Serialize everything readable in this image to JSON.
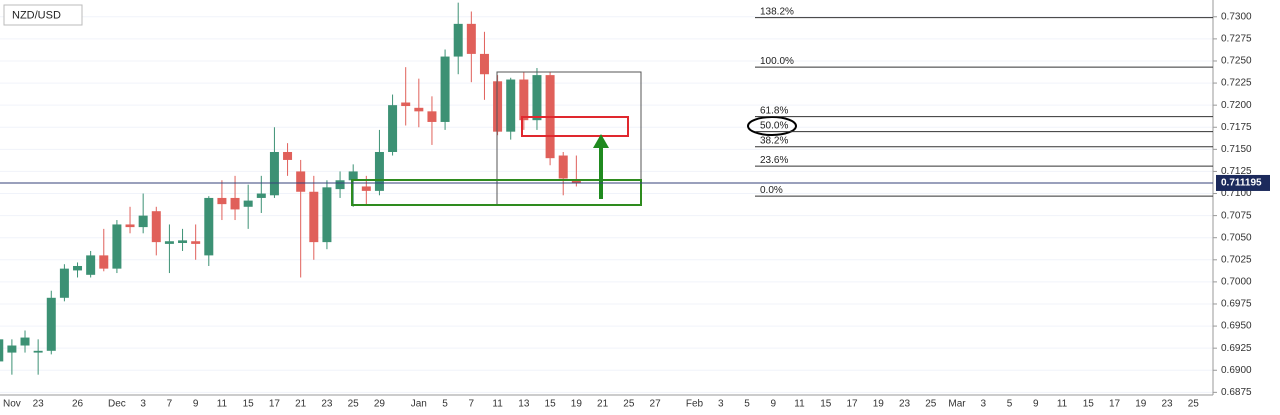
{
  "chart_data": {
    "type": "candlestick",
    "symbol": "NZD/USD",
    "categories": [
      null,
      "Nov",
      null,
      "23",
      null,
      null,
      "26",
      null,
      null,
      "Dec",
      null,
      "3",
      null,
      "7",
      null,
      "9",
      null,
      "11",
      null,
      "15",
      null,
      "17",
      null,
      "21",
      null,
      "23",
      null,
      "25",
      null,
      "29",
      null,
      null,
      "Jan",
      null,
      "5",
      null,
      "7",
      null,
      "11",
      null,
      "13",
      null,
      "15",
      null,
      "19",
      null,
      "21",
      null,
      "25",
      null,
      "27",
      null,
      null,
      "Feb",
      null,
      "3",
      null,
      "5",
      null,
      "9",
      null,
      "11",
      null,
      "15",
      null,
      "17",
      null,
      "19",
      null,
      "23",
      null,
      "25",
      null,
      "Mar",
      null,
      "3",
      null,
      "5",
      null,
      "9",
      null,
      "11",
      null,
      "15",
      null,
      "17",
      null,
      "19",
      null,
      "23",
      null,
      "25",
      null
    ],
    "open": [
      0.691,
      0.692,
      0.6928,
      0.692,
      0.6922,
      0.6982,
      0.7013,
      0.7008,
      0.703,
      0.7015,
      0.7065,
      0.7062,
      0.708,
      0.7043,
      0.7044,
      0.7046,
      0.703,
      0.7095,
      0.7095,
      0.7085,
      0.7095,
      0.7098,
      0.7147,
      0.7125,
      0.7102,
      0.7045,
      0.7105,
      0.7115,
      0.7108,
      0.7103,
      0.7147,
      0.7203,
      0.7197,
      0.7193,
      0.7181,
      0.7255,
      0.7292,
      0.7258,
      0.7227,
      0.717,
      0.7229,
      0.7183,
      0.7234,
      0.7143,
      0.7115,
      null,
      null,
      null,
      null,
      null,
      null,
      null,
      null,
      null,
      null,
      null,
      null,
      null,
      null,
      null,
      null,
      null,
      null,
      null,
      null,
      null,
      null,
      null,
      null,
      null,
      null,
      null,
      null,
      null,
      null,
      null,
      null,
      null,
      null,
      null,
      null,
      null,
      null,
      null,
      null,
      null,
      null,
      null,
      null,
      null,
      null,
      null,
      null
    ],
    "high": [
      0.6945,
      0.6935,
      0.6945,
      0.6935,
      0.699,
      0.702,
      0.7022,
      0.7035,
      0.706,
      0.707,
      0.7085,
      0.71,
      0.7085,
      0.7065,
      0.706,
      0.7065,
      0.7097,
      0.7115,
      0.712,
      0.711,
      0.712,
      0.7175,
      0.7157,
      0.7138,
      0.712,
      0.7115,
      0.7125,
      0.7133,
      0.712,
      0.7172,
      0.7212,
      0.7243,
      0.723,
      0.721,
      0.7263,
      0.7316,
      0.7306,
      0.7283,
      0.7234,
      0.7231,
      0.7238,
      0.7242,
      0.7238,
      0.7147,
      0.7143,
      null,
      null,
      null,
      null,
      null,
      null,
      null,
      null,
      null,
      null,
      null,
      null,
      null,
      null,
      null,
      null,
      null,
      null,
      null,
      null,
      null,
      null,
      null,
      null,
      null,
      null,
      null,
      null,
      null,
      null,
      null,
      null,
      null,
      null,
      null,
      null,
      null,
      null,
      null,
      null,
      null,
      null,
      null,
      null,
      null,
      null,
      null,
      null
    ],
    "low": [
      0.688,
      0.6895,
      0.692,
      0.6895,
      0.6918,
      0.6978,
      0.7005,
      0.7005,
      0.7012,
      0.701,
      0.7055,
      0.7055,
      0.703,
      0.701,
      0.7035,
      0.7025,
      0.7018,
      0.707,
      0.707,
      0.706,
      0.7078,
      0.7095,
      0.712,
      0.7005,
      0.7025,
      0.7037,
      0.7095,
      0.7085,
      0.7087,
      0.7098,
      0.7143,
      0.7177,
      0.7175,
      0.7155,
      0.7172,
      0.7235,
      0.7226,
      0.7206,
      0.7166,
      0.7161,
      0.7172,
      0.7172,
      0.7132,
      0.7098,
      0.7108,
      null,
      null,
      null,
      null,
      null,
      null,
      null,
      null,
      null,
      null,
      null,
      null,
      null,
      null,
      null,
      null,
      null,
      null,
      null,
      null,
      null,
      null,
      null,
      null,
      null,
      null,
      null,
      null,
      null,
      null,
      null,
      null,
      null,
      null,
      null,
      null,
      null,
      null,
      null,
      null,
      null,
      null,
      null,
      null,
      null,
      null,
      null,
      null
    ],
    "close": [
      0.6935,
      0.6928,
      0.6937,
      0.6922,
      0.6982,
      0.7015,
      0.7018,
      0.703,
      0.7015,
      0.7065,
      0.7062,
      0.7075,
      0.7045,
      0.7046,
      0.7047,
      0.7043,
      0.7095,
      0.7088,
      0.7082,
      0.7092,
      0.71,
      0.7147,
      0.7138,
      0.7102,
      0.7045,
      0.7107,
      0.7115,
      0.7125,
      0.7103,
      0.7147,
      0.72,
      0.7199,
      0.7193,
      0.7181,
      0.7255,
      0.7292,
      0.7258,
      0.7235,
      0.717,
      0.7229,
      0.7183,
      0.7234,
      0.714,
      0.7117,
      0.7112,
      null,
      null,
      null,
      null,
      null,
      null,
      null,
      null,
      null,
      null,
      null,
      null,
      null,
      null,
      null,
      null,
      null,
      null,
      null,
      null,
      null,
      null,
      null,
      null,
      null,
      null,
      null,
      null,
      null,
      null,
      null,
      null,
      null,
      null,
      null,
      null,
      null,
      null,
      null,
      null,
      null,
      null,
      null,
      null,
      null,
      null,
      null,
      null
    ],
    "up_color": "#3c9174",
    "down_color": "#e0605a",
    "ylim": [
      0.6872,
      0.7319
    ],
    "yticks": [
      {
        "value": 0.6875,
        "label": "0.6875"
      },
      {
        "value": 0.69,
        "label": "0.6900"
      },
      {
        "value": 0.6925,
        "label": "0.6925"
      },
      {
        "value": 0.695,
        "label": "0.6950"
      },
      {
        "value": 0.6975,
        "label": "0.6975"
      },
      {
        "value": 0.7,
        "label": "0.7000"
      },
      {
        "value": 0.7025,
        "label": "0.7025"
      },
      {
        "value": 0.705,
        "label": "0.7050"
      },
      {
        "value": 0.7075,
        "label": "0.7075"
      },
      {
        "value": 0.71,
        "label": "0.7100"
      },
      {
        "value": 0.7125,
        "label": "0.7125"
      },
      {
        "value": 0.715,
        "label": "0.7150"
      },
      {
        "value": 0.7175,
        "label": "0.7175"
      },
      {
        "value": 0.72,
        "label": "0.7200"
      },
      {
        "value": 0.7225,
        "label": "0.7225"
      },
      {
        "value": 0.725,
        "label": "0.7250"
      },
      {
        "value": 0.7275,
        "label": "0.7275"
      },
      {
        "value": 0.73,
        "label": "0.7300"
      }
    ],
    "grid": true,
    "last_price": 0.711195,
    "fib_levels": [
      {
        "label": "138.2%",
        "value": 0.7299
      },
      {
        "label": "100.0%",
        "value": 0.7243
      },
      {
        "label": "61.8%",
        "value": 0.7187
      },
      {
        "label": "50.0%",
        "value": 0.717
      },
      {
        "label": "38.2%",
        "value": 0.7153
      },
      {
        "label": "23.6%",
        "value": 0.7131
      },
      {
        "label": "0.0%",
        "value": 0.7097
      }
    ]
  }
}
